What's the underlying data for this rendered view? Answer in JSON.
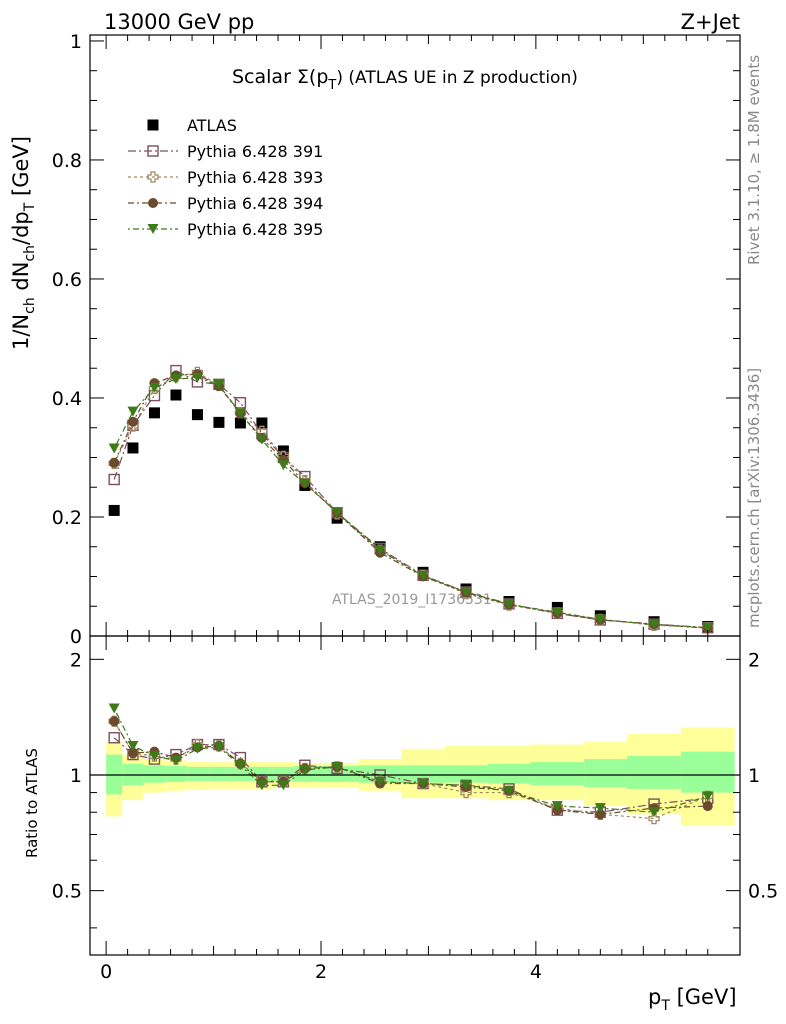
{
  "header": {
    "left": "13000 GeV pp",
    "right": "Z+Jet"
  },
  "title": {
    "prefix": "Scalar Σ(p",
    "sub": "T",
    "suffix": ") (ATLAS UE in Z production)"
  },
  "side_labels": {
    "rivet": "Rivet 3.1.10, ≥ 1.8M events",
    "mcplots": "mcplots.cern.ch [arXiv:1306.3436]"
  },
  "watermark": "ATLAS_2019_I1736531",
  "ylabel_main": {
    "a": "1/N",
    "a_sub": "ch",
    "b": " dN",
    "b_sub": "ch",
    "c": "/dp",
    "c_sub": "T",
    "d": " [GeV]"
  },
  "ylabel_ratio": "Ratio to ATLAS",
  "xlabel": {
    "a": "p",
    "a_sub": "T",
    "b": " [GeV]"
  },
  "colors": {
    "data": "#000000",
    "p391": "#7a5060",
    "p393": "#a08a60",
    "p394": "#6b4a2e",
    "p395": "#3d7a18",
    "band_inner": "#99ff99",
    "band_outer": "#ffff99"
  },
  "chart_data": [
    {
      "type": "scatter",
      "panel": "main",
      "xlabel": "p_T [GeV]",
      "ylabel": "1/N_ch dN_ch/dp_T [GeV]",
      "xlim": [
        -0.15,
        5.9
      ],
      "ylim": [
        0,
        1.01
      ],
      "yticks": [
        0,
        0.2,
        0.4,
        0.6,
        0.8,
        1
      ],
      "ytick_labels": [
        "0",
        "0.2",
        "0.4",
        "0.6",
        "0.8",
        "1"
      ],
      "legend_position": "top-left",
      "x": [
        0.075,
        0.25,
        0.45,
        0.65,
        0.85,
        1.05,
        1.25,
        1.45,
        1.65,
        1.85,
        2.15,
        2.55,
        2.95,
        3.35,
        3.75,
        4.2,
        4.6,
        5.1,
        5.6
      ],
      "series": [
        {
          "name": "ATLAS",
          "marker": "square",
          "values": [
            0.211,
            0.316,
            0.375,
            0.405,
            0.372,
            0.359,
            0.358,
            0.358,
            0.311,
            0.253,
            0.198,
            0.15,
            0.107,
            0.079,
            0.058,
            0.048,
            0.034,
            0.024,
            0.016
          ]
        },
        {
          "name": "Pythia 6.428 391",
          "marker": "open-square",
          "values": [
            0.263,
            0.354,
            0.404,
            0.446,
            0.427,
            0.423,
            0.392,
            0.34,
            0.3,
            0.268,
            0.207,
            0.147,
            0.102,
            0.074,
            0.054,
            0.038,
            0.027,
            0.02,
            0.014
          ]
        },
        {
          "name": "Pythia 6.428 393",
          "marker": "open-cross",
          "values": [
            0.29,
            0.353,
            0.416,
            0.436,
            0.443,
            0.421,
            0.375,
            0.344,
            0.302,
            0.261,
            0.205,
            0.144,
            0.102,
            0.071,
            0.052,
            0.039,
            0.028,
            0.018,
            0.014
          ]
        },
        {
          "name": "Pythia 6.428 394",
          "marker": "circle",
          "values": [
            0.291,
            0.36,
            0.425,
            0.438,
            0.44,
            0.42,
            0.374,
            0.333,
            0.296,
            0.257,
            0.207,
            0.14,
            0.1,
            0.073,
            0.053,
            0.038,
            0.027,
            0.02,
            0.013
          ]
        },
        {
          "name": "Pythia 6.428 395",
          "marker": "triangle-down",
          "values": [
            0.315,
            0.377,
            0.417,
            0.432,
            0.434,
            0.422,
            0.374,
            0.33,
            0.287,
            0.256,
            0.208,
            0.144,
            0.101,
            0.074,
            0.053,
            0.04,
            0.028,
            0.019,
            0.014
          ]
        }
      ]
    },
    {
      "type": "scatter",
      "panel": "ratio",
      "xlabel": "p_T [GeV]",
      "ylabel": "Ratio to ATLAS",
      "xlim": [
        -0.15,
        5.9
      ],
      "ylim": [
        0.34,
        2.3
      ],
      "scale": "log",
      "yticks": [
        0.5,
        1,
        2
      ],
      "ytick_labels": [
        "0.5",
        "1",
        "2"
      ],
      "xticks": [
        0,
        2,
        4
      ],
      "xtick_labels": [
        "0",
        "2",
        "4"
      ],
      "reference_line": 1,
      "band_bins": [
        [
          0,
          0.15
        ],
        [
          0.15,
          0.35
        ],
        [
          0.35,
          0.55
        ],
        [
          0.55,
          0.75
        ],
        [
          0.75,
          0.95
        ],
        [
          0.95,
          1.15
        ],
        [
          1.15,
          1.35
        ],
        [
          1.35,
          1.55
        ],
        [
          1.55,
          1.75
        ],
        [
          1.75,
          1.95
        ],
        [
          1.95,
          2.35
        ],
        [
          2.35,
          2.75
        ],
        [
          2.75,
          3.15
        ],
        [
          3.15,
          3.55
        ],
        [
          3.55,
          3.95
        ],
        [
          3.95,
          4.45
        ],
        [
          4.45,
          4.85
        ],
        [
          4.85,
          5.35
        ],
        [
          5.35,
          5.85
        ]
      ],
      "band_inner": [
        [
          0.89,
          1.13
        ],
        [
          0.94,
          1.07
        ],
        [
          0.955,
          1.06
        ],
        [
          0.96,
          1.055
        ],
        [
          0.965,
          1.05
        ],
        [
          0.965,
          1.05
        ],
        [
          0.965,
          1.05
        ],
        [
          0.965,
          1.05
        ],
        [
          0.965,
          1.05
        ],
        [
          0.96,
          1.055
        ],
        [
          0.96,
          1.055
        ],
        [
          0.955,
          1.06
        ],
        [
          0.955,
          1.06
        ],
        [
          0.955,
          1.06
        ],
        [
          0.95,
          1.07
        ],
        [
          0.94,
          1.08
        ],
        [
          0.93,
          1.1
        ],
        [
          0.92,
          1.12
        ],
        [
          0.9,
          1.15
        ]
      ],
      "band_outer": [
        [
          0.78,
          1.22
        ],
        [
          0.86,
          1.13
        ],
        [
          0.9,
          1.1
        ],
        [
          0.91,
          1.09
        ],
        [
          0.915,
          1.085
        ],
        [
          0.92,
          1.08
        ],
        [
          0.92,
          1.08
        ],
        [
          0.92,
          1.08
        ],
        [
          0.925,
          1.08
        ],
        [
          0.93,
          1.075
        ],
        [
          0.93,
          1.075
        ],
        [
          0.91,
          1.1
        ],
        [
          0.87,
          1.17
        ],
        [
          0.87,
          1.19
        ],
        [
          0.86,
          1.19
        ],
        [
          0.86,
          1.2
        ],
        [
          0.83,
          1.22
        ],
        [
          0.79,
          1.28
        ],
        [
          0.74,
          1.33
        ]
      ],
      "x": [
        0.075,
        0.25,
        0.45,
        0.65,
        0.85,
        1.05,
        1.25,
        1.45,
        1.65,
        1.85,
        2.15,
        2.55,
        2.95,
        3.35,
        3.75,
        4.2,
        4.6,
        5.1,
        5.6
      ],
      "series": [
        {
          "name": "Pythia 6.428 391",
          "marker": "open-square",
          "values": [
            1.25,
            1.13,
            1.1,
            1.13,
            1.2,
            1.2,
            1.11,
            0.96,
            0.96,
            1.06,
            1.04,
            1.0,
            0.95,
            0.94,
            0.92,
            0.81,
            0.8,
            0.84,
            0.87
          ]
        },
        {
          "name": "Pythia 6.428 393",
          "marker": "open-cross",
          "values": [
            1.38,
            1.14,
            1.12,
            1.1,
            1.2,
            1.19,
            1.07,
            0.97,
            0.96,
            1.04,
            1.05,
            0.96,
            0.95,
            0.9,
            0.9,
            0.82,
            0.79,
            0.77,
            0.88
          ]
        },
        {
          "name": "Pythia 6.428 394",
          "marker": "circle",
          "values": [
            1.38,
            1.14,
            1.15,
            1.11,
            1.18,
            1.19,
            1.07,
            0.96,
            0.96,
            1.04,
            1.05,
            0.95,
            0.95,
            0.93,
            0.91,
            0.81,
            0.79,
            0.82,
            0.83
          ]
        },
        {
          "name": "Pythia 6.428 395",
          "marker": "triangle-down",
          "values": [
            1.49,
            1.19,
            1.12,
            1.09,
            1.17,
            1.18,
            1.06,
            0.94,
            0.94,
            1.03,
            1.05,
            0.96,
            0.95,
            0.94,
            0.91,
            0.83,
            0.82,
            0.8,
            0.88
          ]
        }
      ]
    }
  ]
}
